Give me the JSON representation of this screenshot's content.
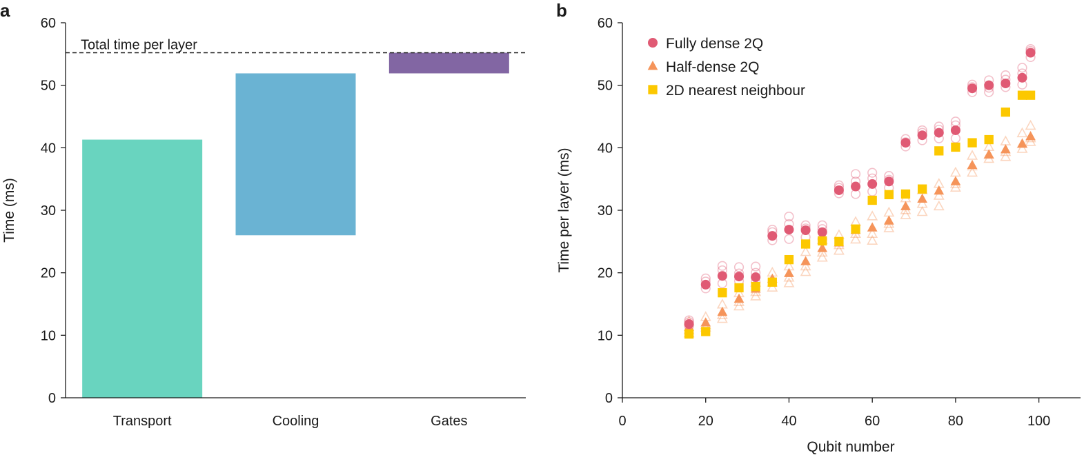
{
  "chart_data": [
    {
      "type": "bar",
      "panel_label": "a",
      "categories": [
        "Transport",
        "Cooling",
        "Gates"
      ],
      "bars": [
        {
          "category": "Transport",
          "bottom": 0,
          "top": 41.3,
          "color": "#69d4bf"
        },
        {
          "category": "Cooling",
          "bottom": 26.0,
          "top": 51.9,
          "color": "#6ab3d3"
        },
        {
          "category": "Gates",
          "bottom": 51.9,
          "top": 55.2,
          "color": "#8266a3"
        }
      ],
      "reference_line": {
        "label": "Total time per layer",
        "value": 55.2,
        "style": "dashed"
      },
      "ylabel": "Time (ms)",
      "xlabel": "",
      "ylim": [
        0,
        60
      ],
      "yticks": [
        0,
        10,
        20,
        30,
        40,
        50,
        60
      ],
      "grid": false
    },
    {
      "type": "scatter",
      "panel_label": "b",
      "xlabel": "Qubit number",
      "ylabel": "Time per layer (ms)",
      "xlim": [
        0,
        110
      ],
      "ylim": [
        0,
        60
      ],
      "xticks": [
        0,
        20,
        40,
        60,
        80,
        100
      ],
      "yticks": [
        0,
        10,
        20,
        30,
        40,
        50,
        60
      ],
      "legend_position": "top-left",
      "grid": false,
      "series": [
        {
          "name": "Fully dense 2Q",
          "marker": "circle",
          "color": "#e05a74",
          "x": [
            16,
            20,
            24,
            28,
            32,
            36,
            40,
            44,
            48,
            52,
            56,
            60,
            64,
            68,
            72,
            76,
            80,
            84,
            88,
            92,
            96,
            98
          ],
          "y": [
            11.8,
            18.1,
            19.5,
            19.4,
            19.3,
            25.9,
            26.9,
            26.8,
            26.5,
            33.2,
            33.8,
            34.2,
            34.6,
            40.8,
            42.0,
            42.4,
            42.8,
            49.5,
            50.0,
            50.3,
            51.2,
            55.2
          ],
          "trials": [
            [
              12.4,
              11.4,
              12.1
            ],
            [
              19.1,
              17.5,
              18.6
            ],
            [
              21.1,
              18.3,
              20.4
            ],
            [
              20.9,
              18.7,
              19.9
            ],
            [
              21.0,
              18.5,
              20.0
            ],
            [
              26.9,
              25.2,
              26.5
            ],
            [
              29.0,
              25.4,
              27.8
            ],
            [
              27.6,
              25.7,
              27.1
            ],
            [
              27.6,
              25.4,
              27.0
            ],
            [
              34.0,
              32.7,
              33.6
            ],
            [
              35.8,
              32.6,
              34.6
            ],
            [
              36.0,
              33.0,
              35.1
            ],
            [
              35.5,
              33.6,
              34.9
            ],
            [
              41.4,
              40.2,
              40.9
            ],
            [
              42.8,
              41.2,
              42.4
            ],
            [
              43.4,
              41.5,
              42.9
            ],
            [
              44.2,
              41.5,
              43.6
            ],
            [
              50.1,
              48.9,
              49.7
            ],
            [
              50.8,
              48.9,
              49.6
            ],
            [
              51.6,
              49.7,
              50.9
            ],
            [
              52.8,
              50.1,
              51.9
            ],
            [
              55.8,
              54.5,
              55.5
            ]
          ]
        },
        {
          "name": "Half-dense 2Q",
          "marker": "triangle",
          "color": "#f5945a",
          "x": [
            16,
            20,
            24,
            28,
            32,
            36,
            40,
            44,
            48,
            52,
            56,
            60,
            64,
            68,
            72,
            76,
            80,
            84,
            88,
            92,
            96,
            98
          ],
          "y": [
            11.3,
            12.0,
            13.7,
            15.8,
            17.4,
            19.0,
            19.9,
            21.8,
            23.9,
            24.8,
            26.8,
            27.2,
            28.3,
            30.6,
            31.8,
            33.1,
            34.6,
            37.2,
            38.9,
            39.7,
            40.6,
            41.8
          ],
          "trials": [
            [
              10.3,
              12.2,
              10.8
            ],
            [
              11.2,
              12.9,
              11.6
            ],
            [
              12.6,
              14.9,
              13.2
            ],
            [
              14.6,
              16.7,
              15.3
            ],
            [
              16.2,
              18.4,
              16.9
            ],
            [
              17.6,
              20.0,
              18.4
            ],
            [
              18.3,
              21.0,
              19.2
            ],
            [
              20.1,
              23.3,
              21.0
            ],
            [
              22.4,
              25.2,
              23.2
            ],
            [
              23.5,
              26.0,
              24.4
            ],
            [
              25.3,
              28.1,
              26.2
            ],
            [
              25.1,
              29.0,
              26.2
            ],
            [
              27.1,
              29.6,
              27.8
            ],
            [
              29.2,
              31.9,
              30.0
            ],
            [
              29.7,
              33.2,
              31.0
            ],
            [
              30.6,
              34.2,
              32.3
            ],
            [
              33.6,
              36.0,
              34.2
            ],
            [
              36.0,
              38.7,
              37.0
            ],
            [
              38.2,
              40.1,
              38.8
            ],
            [
              38.5,
              41.0,
              39.3
            ],
            [
              39.8,
              42.3,
              40.6
            ],
            [
              40.9,
              43.5,
              41.5
            ]
          ]
        },
        {
          "name": "2D nearest neighbour",
          "marker": "square",
          "color": "#fcc800",
          "x": [
            16,
            20,
            24,
            28,
            32,
            36,
            40,
            44,
            48,
            52,
            56,
            60,
            64,
            68,
            72,
            76,
            80,
            84,
            88,
            92,
            96,
            98
          ],
          "y": [
            10.2,
            10.6,
            16.8,
            17.6,
            17.8,
            18.5,
            22.1,
            24.6,
            25.1,
            25.0,
            27.0,
            31.6,
            32.5,
            32.6,
            33.4,
            39.5,
            40.1,
            40.8,
            41.3,
            45.7,
            48.4,
            48.4
          ]
        }
      ]
    }
  ]
}
